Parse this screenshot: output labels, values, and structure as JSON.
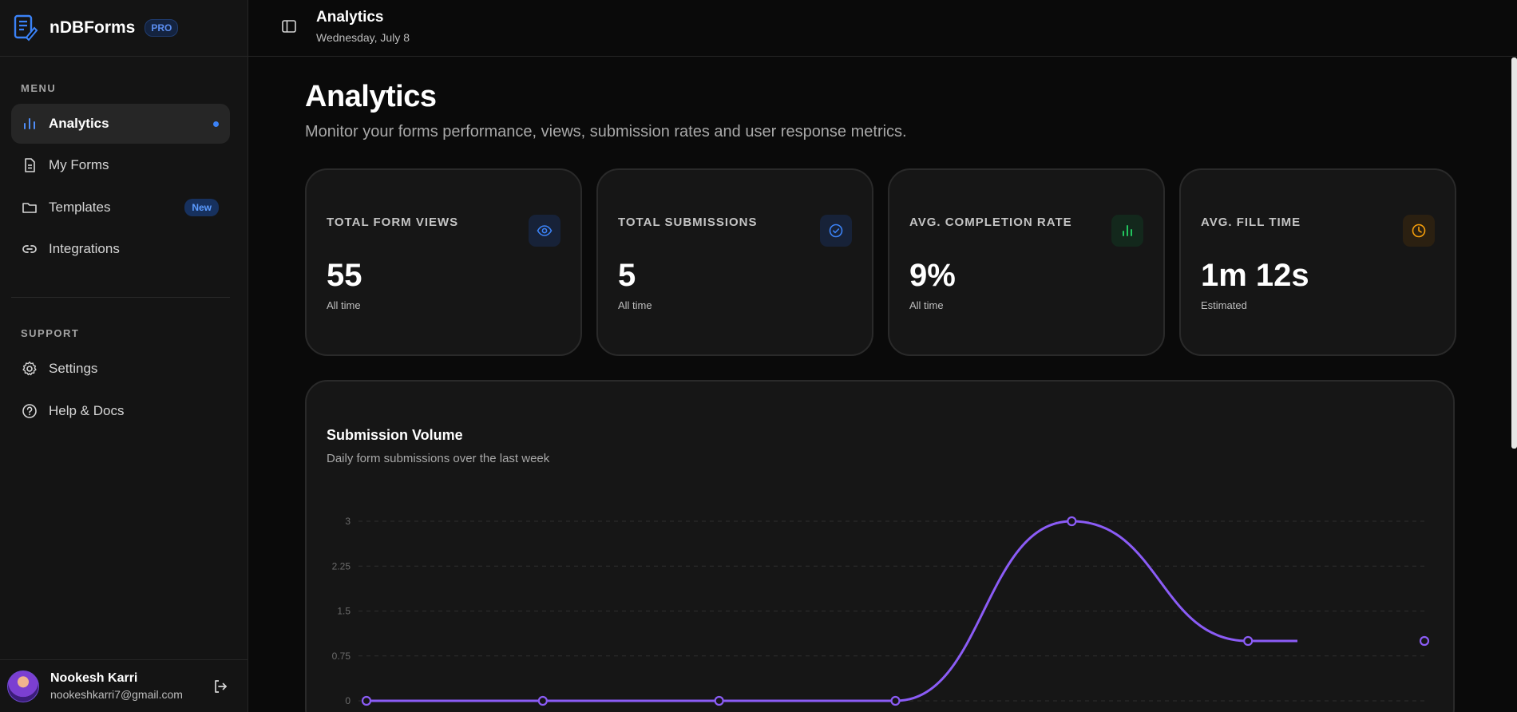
{
  "brand": {
    "name": "nDBForms",
    "badge": "PRO"
  },
  "sidebar": {
    "menu_label": "MENU",
    "menu_items": [
      {
        "label": "Analytics",
        "icon": "bar-chart-icon"
      },
      {
        "label": "My Forms",
        "icon": "document-icon"
      },
      {
        "label": "Templates",
        "icon": "folder-icon",
        "badge": "New"
      },
      {
        "label": "Integrations",
        "icon": "link-icon"
      }
    ],
    "support_label": "SUPPORT",
    "support_items": [
      {
        "label": "Settings",
        "icon": "gear-icon"
      },
      {
        "label": "Help & Docs",
        "icon": "help-circle-icon"
      }
    ]
  },
  "user": {
    "name": "Nookesh Karri",
    "email": "nookeshkarri7@gmail.com"
  },
  "header": {
    "title": "Analytics",
    "date": "Wednesday, July 8"
  },
  "page": {
    "title": "Analytics",
    "subtitle": "Monitor your forms performance, views, submission rates and user response metrics."
  },
  "stats": [
    {
      "label": "TOTAL FORM VIEWS",
      "value": "55",
      "caption": "All time",
      "icon": "eye-icon",
      "color": "#3b82f6"
    },
    {
      "label": "TOTAL SUBMISSIONS",
      "value": "5",
      "caption": "All time",
      "icon": "check-circle-icon",
      "color": "#3b82f6"
    },
    {
      "label": "AVG. COMPLETION RATE",
      "value": "9%",
      "caption": "All time",
      "icon": "bar-chart-icon",
      "color": "#22c55e"
    },
    {
      "label": "AVG. FILL TIME",
      "value": "1m 12s",
      "caption": "Estimated",
      "icon": "clock-icon",
      "color": "#f59e0b"
    }
  ],
  "chart": {
    "title": "Submission Volume",
    "subtitle": "Daily form submissions over the last week",
    "color": "#8b5cf6"
  },
  "chart_data": {
    "type": "line",
    "title": "Submission Volume",
    "x": [
      0,
      1,
      2,
      3,
      4,
      5,
      6
    ],
    "values": [
      0,
      0,
      0,
      0,
      3,
      1,
      1
    ],
    "yticks": [
      "3",
      "2.25",
      "1.5",
      "0.75",
      "0"
    ],
    "ylim": [
      0,
      3
    ],
    "grid": true
  }
}
